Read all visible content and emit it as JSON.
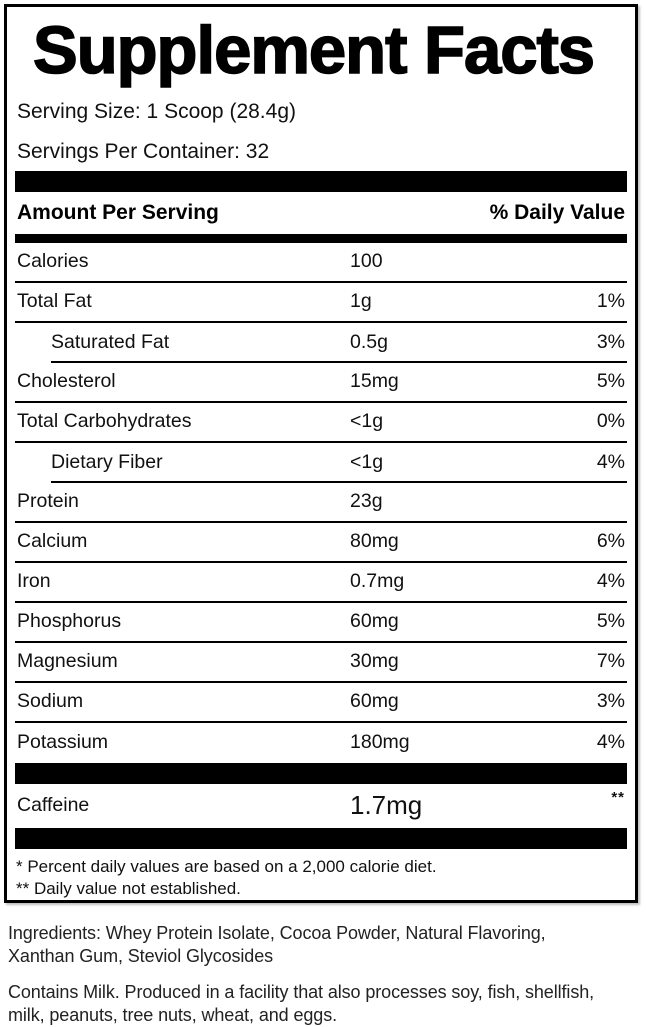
{
  "title": "Supplement Facts",
  "serving": {
    "serving_size": "Serving Size: 1 Scoop (28.4g)",
    "servings_per_container": "Servings Per Container: 32"
  },
  "table": {
    "header": {
      "left": "Amount Per Serving",
      "right": "% Daily Value"
    },
    "rows": [
      {
        "label": "Calories",
        "amount": "100",
        "dv": "",
        "indent": false
      },
      {
        "label": "Total Fat",
        "amount": "1g",
        "dv": "1%",
        "indent": false
      },
      {
        "label": "Saturated Fat",
        "amount": "0.5g",
        "dv": "3%",
        "indent": true
      },
      {
        "label": "Cholesterol",
        "amount": "15mg",
        "dv": "5%",
        "indent": false
      },
      {
        "label": "Total Carbohydrates",
        "amount": "<1g",
        "dv": "0%",
        "indent": false
      },
      {
        "label": "Dietary Fiber",
        "amount": "<1g",
        "dv": "4%",
        "indent": true
      },
      {
        "label": "Protein",
        "amount": "23g",
        "dv": "",
        "indent": false
      },
      {
        "label": "Calcium",
        "amount": "80mg",
        "dv": "6%",
        "indent": false
      },
      {
        "label": "Iron",
        "amount": "0.7mg",
        "dv": "4%",
        "indent": false
      },
      {
        "label": "Phosphorus",
        "amount": "60mg",
        "dv": "5%",
        "indent": false
      },
      {
        "label": "Magnesium",
        "amount": "30mg",
        "dv": "7%",
        "indent": false
      },
      {
        "label": "Sodium",
        "amount": "60mg",
        "dv": "3%",
        "indent": false
      },
      {
        "label": "Potassium",
        "amount": "180mg",
        "dv": "4%",
        "indent": false
      }
    ],
    "caffeine_row": {
      "label": "Caffeine",
      "amount": "1.7mg",
      "dv": "**"
    }
  },
  "footnotes": [
    "* Percent daily values are based on a 2,000 calorie diet.",
    "** Daily value not established."
  ],
  "ingredients_lines": [
    "Ingredients: Whey Protein Isolate, Cocoa Powder, Natural Flavoring,",
    "Xanthan Gum, Steviol Glycosides"
  ],
  "allergen_lines": [
    "Contains Milk. Produced in a facility that also processes soy, fish, shellfish,",
    "milk, peanuts, tree nuts, wheat, and eggs."
  ],
  "colors": {
    "bar": "#000000",
    "border": "#000000",
    "text": "#1c1c1c"
  }
}
